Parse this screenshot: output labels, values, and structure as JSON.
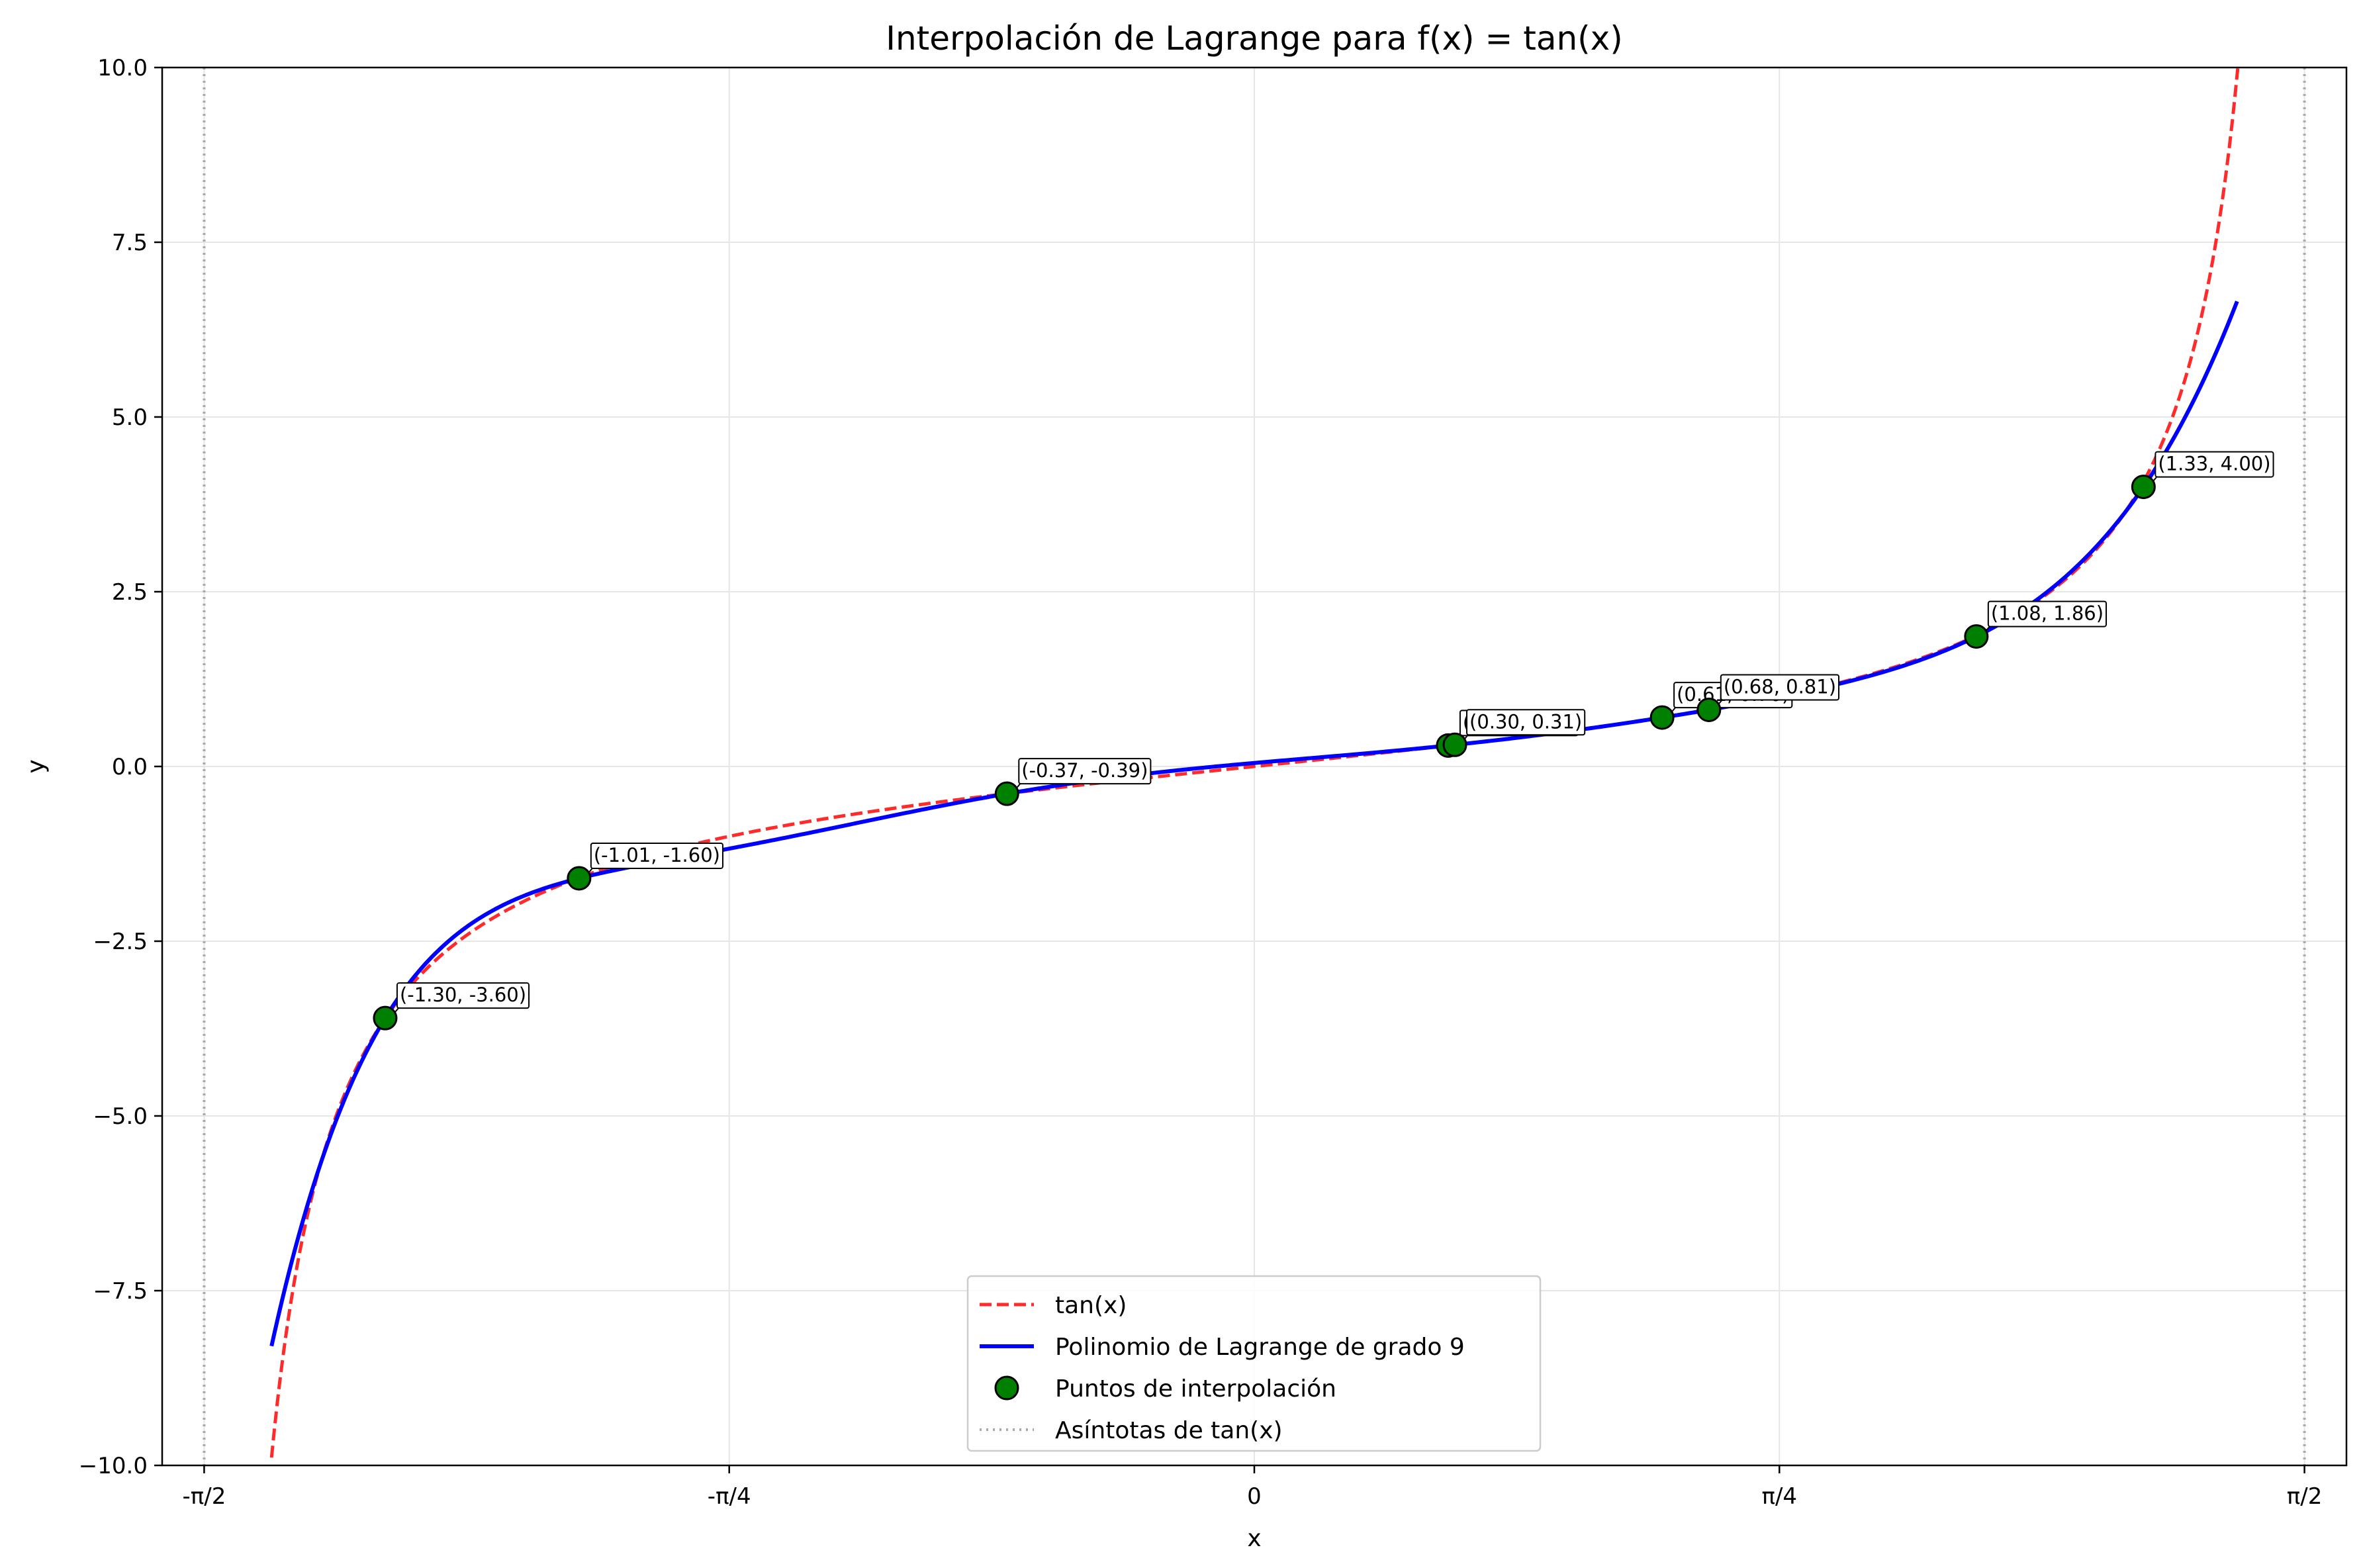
{
  "chart_data": {
    "type": "line",
    "title": "Interpolación de Lagrange para f(x) = tan(x)",
    "xlabel": "x",
    "ylabel": "y",
    "xlim": [
      -1.6336,
      1.6336
    ],
    "ylim": [
      -10,
      10
    ],
    "x_ticks": [
      {
        "value": -1.5708,
        "label": "-π/2"
      },
      {
        "value": -0.7854,
        "label": "-π/4"
      },
      {
        "value": 0,
        "label": "0"
      },
      {
        "value": 0.7854,
        "label": "π/4"
      },
      {
        "value": 1.5708,
        "label": "π/2"
      }
    ],
    "y_ticks": [
      {
        "value": 10,
        "label": "10.0"
      },
      {
        "value": 7.5,
        "label": "7.5"
      },
      {
        "value": 5,
        "label": "5.0"
      },
      {
        "value": 2.5,
        "label": "2.5"
      },
      {
        "value": 0,
        "label": "0.0"
      },
      {
        "value": -2.5,
        "label": "−2.5"
      },
      {
        "value": -5,
        "label": "−5.0"
      },
      {
        "value": -7.5,
        "label": "−7.5"
      },
      {
        "value": -10,
        "label": "−10.0"
      }
    ],
    "grid": true,
    "legend_position": "lower center",
    "series": [
      {
        "name": "tan(x)",
        "kind": "function-tan",
        "x_range": [
          -1.47,
          1.471
        ],
        "color": "#ff2a2a",
        "style": "dashed"
      },
      {
        "name": "Polinomio de Lagrange de grado 9",
        "kind": "interpolant",
        "x_range": [
          -1.47,
          1.47
        ],
        "color": "#0000ff",
        "style": "solid"
      },
      {
        "name": "Puntos de interpolación",
        "kind": "scatter",
        "color": "#008000"
      },
      {
        "name": "Asíntotas de tan(x)",
        "kind": "vlines",
        "x": [
          -1.5708,
          1.5708
        ],
        "color": "#aaaaaa",
        "style": "dotted"
      }
    ],
    "points": [
      {
        "x": -1.3,
        "y": -3.6,
        "label": "(-1.30, -3.60)"
      },
      {
        "x": -1.01,
        "y": -1.6,
        "label": "(-1.01, -1.60)"
      },
      {
        "x": -0.37,
        "y": -0.39,
        "label": "(-0.37, -0.39)"
      },
      {
        "x": 0.29,
        "y": 0.3,
        "label": "(0.29, 0.30)"
      },
      {
        "x": 0.3,
        "y": 0.31,
        "label": "(0.30, 0.31)"
      },
      {
        "x": 0.61,
        "y": 0.7,
        "label": "(0.61, 0.70)"
      },
      {
        "x": 0.68,
        "y": 0.81,
        "label": "(0.68, 0.81)"
      },
      {
        "x": 1.08,
        "y": 1.86,
        "label": "(1.08, 1.86)"
      },
      {
        "x": 1.33,
        "y": 4.0,
        "label": "(1.33, 4.00)"
      }
    ]
  }
}
